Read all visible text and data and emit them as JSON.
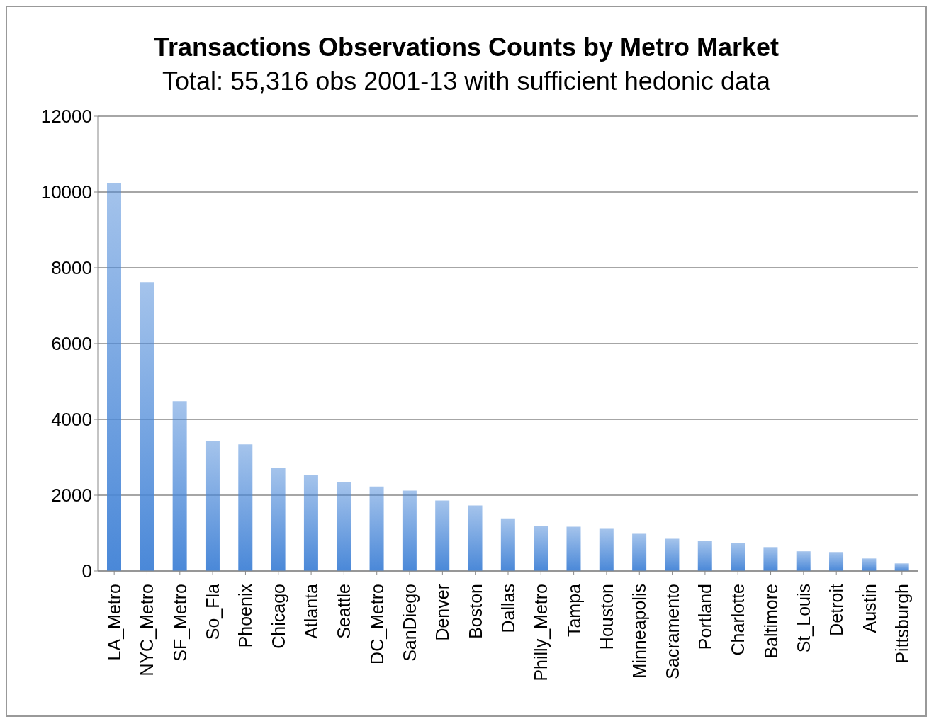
{
  "chart_data": {
    "type": "bar",
    "title": "Transactions Observations Counts by Metro Market",
    "subtitle": "Total: 55,316 obs 2001-13 with sufficient hedonic data",
    "categories": [
      "LA_Metro",
      "NYC_Metro",
      "SF_Metro",
      "So_Fla",
      "Phoenix",
      "Chicago",
      "Atlanta",
      "Seattle",
      "DC_Metro",
      "SanDiego",
      "Denver",
      "Boston",
      "Dallas",
      "Philly_Metro",
      "Tampa",
      "Houston",
      "Minneapolis",
      "Sacramento",
      "Portland",
      "Charlotte",
      "Baltimore",
      "St_Louis",
      "Detroit",
      "Austin",
      "Pittsburgh"
    ],
    "values": [
      10240,
      7620,
      4480,
      3420,
      3340,
      2730,
      2530,
      2340,
      2230,
      2120,
      1860,
      1730,
      1390,
      1190,
      1170,
      1110,
      980,
      850,
      800,
      740,
      630,
      520,
      500,
      330,
      200
    ],
    "color": "#4a88d8",
    "ylim": [
      0,
      12000
    ],
    "yticks": [
      0,
      2000,
      4000,
      6000,
      8000,
      10000,
      12000
    ],
    "grid": "y"
  }
}
